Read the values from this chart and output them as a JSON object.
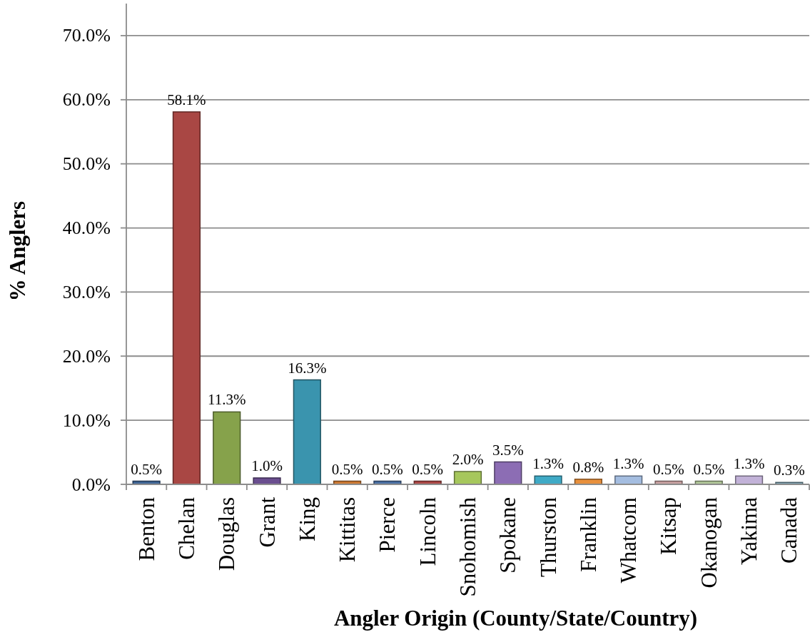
{
  "chart_data": {
    "type": "bar",
    "xlabel": "Angler Origin (County/State/Country)",
    "ylabel": "% Anglers",
    "categories": [
      "Benton",
      "Chelan",
      "Douglas",
      "Grant",
      "King",
      "Kittitas",
      "Pierce",
      "Lincoln",
      "Snohomish",
      "Spokane",
      "Thurston",
      "Franklin",
      "Whatcom",
      "Kitsap",
      "Okanogan",
      "Yakima",
      "Canada"
    ],
    "values": [
      0.5,
      58.1,
      11.3,
      1.0,
      16.3,
      0.5,
      0.5,
      0.5,
      2.0,
      3.5,
      1.3,
      0.8,
      1.3,
      0.5,
      0.5,
      1.3,
      0.3
    ],
    "value_labels": [
      "0.5%",
      "58.1%",
      "11.3%",
      "1.0%",
      "16.3%",
      "0.5%",
      "0.5%",
      "0.5%",
      "2.0%",
      "3.5%",
      "1.3%",
      "0.8%",
      "1.3%",
      "0.5%",
      "0.5%",
      "1.3%",
      "0.3%"
    ],
    "colors": [
      "#3f6596",
      "#a94744",
      "#86a24b",
      "#6a4e8f",
      "#3a94ae",
      "#cf7a32",
      "#4a70a4",
      "#ad4846",
      "#a6c75c",
      "#8c6db4",
      "#3faac6",
      "#e8903c",
      "#a4bde0",
      "#c9a2a2",
      "#b1c799",
      "#c2b2d8",
      "#7fa6b6"
    ],
    "ylim": [
      0,
      75
    ],
    "yticks": [
      {
        "value": 0,
        "label": "0.0%"
      },
      {
        "value": 10,
        "label": "10.0%"
      },
      {
        "value": 20,
        "label": "20.0%"
      },
      {
        "value": 30,
        "label": "30.0%"
      },
      {
        "value": 40,
        "label": "40.0%"
      },
      {
        "value": 50,
        "label": "50.0%"
      },
      {
        "value": 60,
        "label": "60.0%"
      },
      {
        "value": 70,
        "label": "70.0%"
      }
    ],
    "grid": "y"
  }
}
